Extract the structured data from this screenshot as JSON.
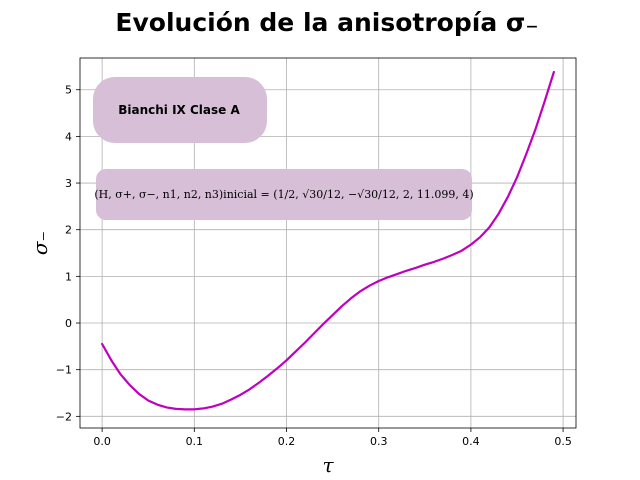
{
  "chart_data": {
    "type": "line",
    "title": "Evolución de la anisotropía σ₋",
    "xlabel": "τ",
    "ylabel": "σ₋",
    "xlim": [
      -0.024,
      0.514
    ],
    "ylim": [
      -2.25,
      5.68
    ],
    "xticks": [
      0.0,
      0.1,
      0.2,
      0.3,
      0.4,
      0.5
    ],
    "xtick_labels": [
      "0.0",
      "0.1",
      "0.2",
      "0.3",
      "0.4",
      "0.5"
    ],
    "yticks": [
      -2,
      -1,
      0,
      1,
      2,
      3,
      4,
      5
    ],
    "ytick_labels": [
      "−2",
      "−1",
      "0",
      "1",
      "2",
      "3",
      "4",
      "5"
    ],
    "grid": true,
    "series": [
      {
        "color": "#bf00bf",
        "x": [
          0.0,
          0.01,
          0.02,
          0.03,
          0.04,
          0.05,
          0.06,
          0.07,
          0.08,
          0.09,
          0.1,
          0.11,
          0.12,
          0.13,
          0.14,
          0.15,
          0.16,
          0.17,
          0.18,
          0.19,
          0.2,
          0.21,
          0.22,
          0.23,
          0.24,
          0.25,
          0.26,
          0.27,
          0.28,
          0.29,
          0.3,
          0.31,
          0.32,
          0.33,
          0.34,
          0.35,
          0.36,
          0.37,
          0.38,
          0.39,
          0.4,
          0.41,
          0.42,
          0.43,
          0.44,
          0.45,
          0.46,
          0.47,
          0.48,
          0.49
        ],
        "y": [
          -0.45,
          -0.8,
          -1.1,
          -1.33,
          -1.52,
          -1.66,
          -1.75,
          -1.81,
          -1.84,
          -1.85,
          -1.85,
          -1.83,
          -1.79,
          -1.73,
          -1.64,
          -1.54,
          -1.42,
          -1.28,
          -1.13,
          -0.97,
          -0.8,
          -0.61,
          -0.42,
          -0.22,
          -0.02,
          0.17,
          0.36,
          0.53,
          0.68,
          0.8,
          0.9,
          0.98,
          1.05,
          1.12,
          1.18,
          1.25,
          1.31,
          1.38,
          1.46,
          1.55,
          1.68,
          1.84,
          2.05,
          2.34,
          2.7,
          3.12,
          3.62,
          4.15,
          4.75,
          5.38
        ]
      }
    ],
    "annotations": [
      "Bianchi IX Clase A",
      "(H, σ+, σ−, n1, n2, n3)inicial = (1/2, √30/12, −√30/12, 2, 11.099, 4)"
    ],
    "annotation_color": "#d8bfd8"
  }
}
